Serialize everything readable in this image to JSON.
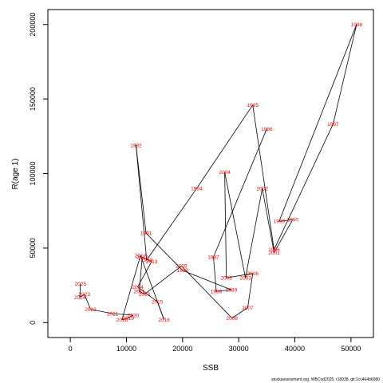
{
  "chart_data": {
    "type": "line",
    "xlabel": "SSB",
    "ylabel": "R(age 1)",
    "xlim": [
      -4000,
      54000
    ],
    "ylim": [
      -10000,
      210000
    ],
    "x_ticks": [
      0,
      10000,
      20000,
      30000,
      40000,
      50000
    ],
    "y_ticks": [
      0,
      50000,
      100000,
      150000,
      200000
    ],
    "grid": false,
    "line_color": "#000000",
    "label_color": "#ff0000",
    "points": [
      {
        "year": "1992",
        "x": 11700,
        "y": 119000
      },
      {
        "year": "1991",
        "x": 13500,
        "y": 60000
      },
      {
        "year": "1993",
        "x": 13600,
        "y": 42000
      },
      {
        "year": "1994",
        "x": 22500,
        "y": 90000
      },
      {
        "year": "1995",
        "x": 32500,
        "y": 146000
      },
      {
        "year": "1996",
        "x": 36300,
        "y": 49000
      },
      {
        "year": "1997",
        "x": 46800,
        "y": 133000
      },
      {
        "year": "1998",
        "x": 51000,
        "y": 200000
      },
      {
        "year": "1999",
        "x": 37200,
        "y": 68000
      },
      {
        "year": "2000",
        "x": 39600,
        "y": 69000
      },
      {
        "year": "2001",
        "x": 36300,
        "y": 47000
      },
      {
        "year": "2002",
        "x": 34200,
        "y": 90000
      },
      {
        "year": "2003",
        "x": 31200,
        "y": 30000
      },
      {
        "year": "2004",
        "x": 27500,
        "y": 101000
      },
      {
        "year": "2005",
        "x": 27800,
        "y": 30000
      },
      {
        "year": "2006",
        "x": 32500,
        "y": 33000
      },
      {
        "year": "2007",
        "x": 31600,
        "y": 10000
      },
      {
        "year": "2008",
        "x": 28800,
        "y": 3000
      },
      {
        "year": "2009",
        "x": 19800,
        "y": 38000
      },
      {
        "year": "2010",
        "x": 13200,
        "y": 19000
      },
      {
        "year": "2011",
        "x": 12300,
        "y": 21000
      },
      {
        "year": "2012",
        "x": 12800,
        "y": 44000
      },
      {
        "year": "2013",
        "x": 14500,
        "y": 41000
      },
      {
        "year": "2014",
        "x": 12000,
        "y": 24000
      },
      {
        "year": "2015",
        "x": 15500,
        "y": 14000
      },
      {
        "year": "2016",
        "x": 16700,
        "y": 2000
      },
      {
        "year": "2017",
        "x": 12500,
        "y": 45000
      },
      {
        "year": "2018",
        "x": 9200,
        "y": 2000
      },
      {
        "year": "2019",
        "x": 10300,
        "y": 3000
      },
      {
        "year": "2020",
        "x": 11200,
        "y": 5000
      },
      {
        "year": "2021",
        "x": 7500,
        "y": 6000
      },
      {
        "year": "2022",
        "x": 3600,
        "y": 9000
      },
      {
        "year": "2023",
        "x": 2500,
        "y": 19000
      },
      {
        "year": "2024",
        "x": 1700,
        "y": 17000
      },
      {
        "year": "2025",
        "x": 1800,
        "y": 26000
      },
      {
        "year": "1987",
        "x": 25500,
        "y": 44000
      },
      {
        "year": "1988",
        "x": 26000,
        "y": 21000
      },
      {
        "year": "1989",
        "x": 28700,
        "y": 22000
      },
      {
        "year": "1990",
        "x": 20000,
        "y": 35000
      },
      {
        "year": "1986",
        "x": 35000,
        "y": 130000
      }
    ],
    "path_order": [
      "1986",
      "1987",
      "1988",
      "1989",
      "1990",
      "1991",
      "1992",
      "1993",
      "1994",
      "1995",
      "1996",
      "1997",
      "1998",
      "1999",
      "2000",
      "2001",
      "2002",
      "2003",
      "2004",
      "2005",
      "2006",
      "2007",
      "2008",
      "2009",
      "2010",
      "2011",
      "2012",
      "2013",
      "2014",
      "2015",
      "2016",
      "2017",
      "2018",
      "2019",
      "2020",
      "2021",
      "2022",
      "2023",
      "2024",
      "2025"
    ]
  },
  "footer": "stockassessment.org, WBCod2025, r18938, git:1cc464b6080"
}
